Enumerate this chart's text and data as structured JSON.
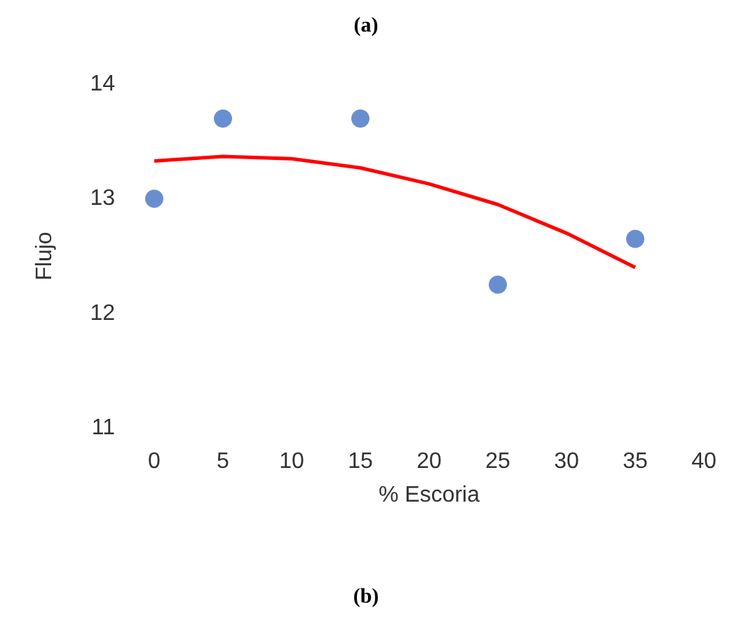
{
  "chart_data": {
    "type": "scatter",
    "title": "(a)",
    "xlabel": "% Escoria",
    "ylabel": "Flujo",
    "annotations": [
      "(b)"
    ],
    "xlim": [
      0,
      40
    ],
    "xticks": [
      0,
      5,
      10,
      15,
      20,
      25,
      30,
      35,
      40
    ],
    "ylim": [
      11,
      14
    ],
    "yticks": [
      11,
      12,
      13,
      14
    ],
    "grid": false,
    "series": [
      {
        "color": "#4472c4",
        "marker": "circle",
        "x": [
          0,
          5,
          15,
          25,
          35
        ],
        "values": [
          13.0,
          13.7,
          13.7,
          12.25,
          12.65
        ]
      },
      {
        "type": "line",
        "color": "#ff0000",
        "marker": "none",
        "x": [
          0,
          5,
          10,
          15,
          20,
          25,
          30,
          35
        ],
        "values": [
          13.33,
          13.37,
          13.35,
          13.27,
          13.13,
          12.95,
          12.7,
          12.4
        ]
      }
    ]
  }
}
